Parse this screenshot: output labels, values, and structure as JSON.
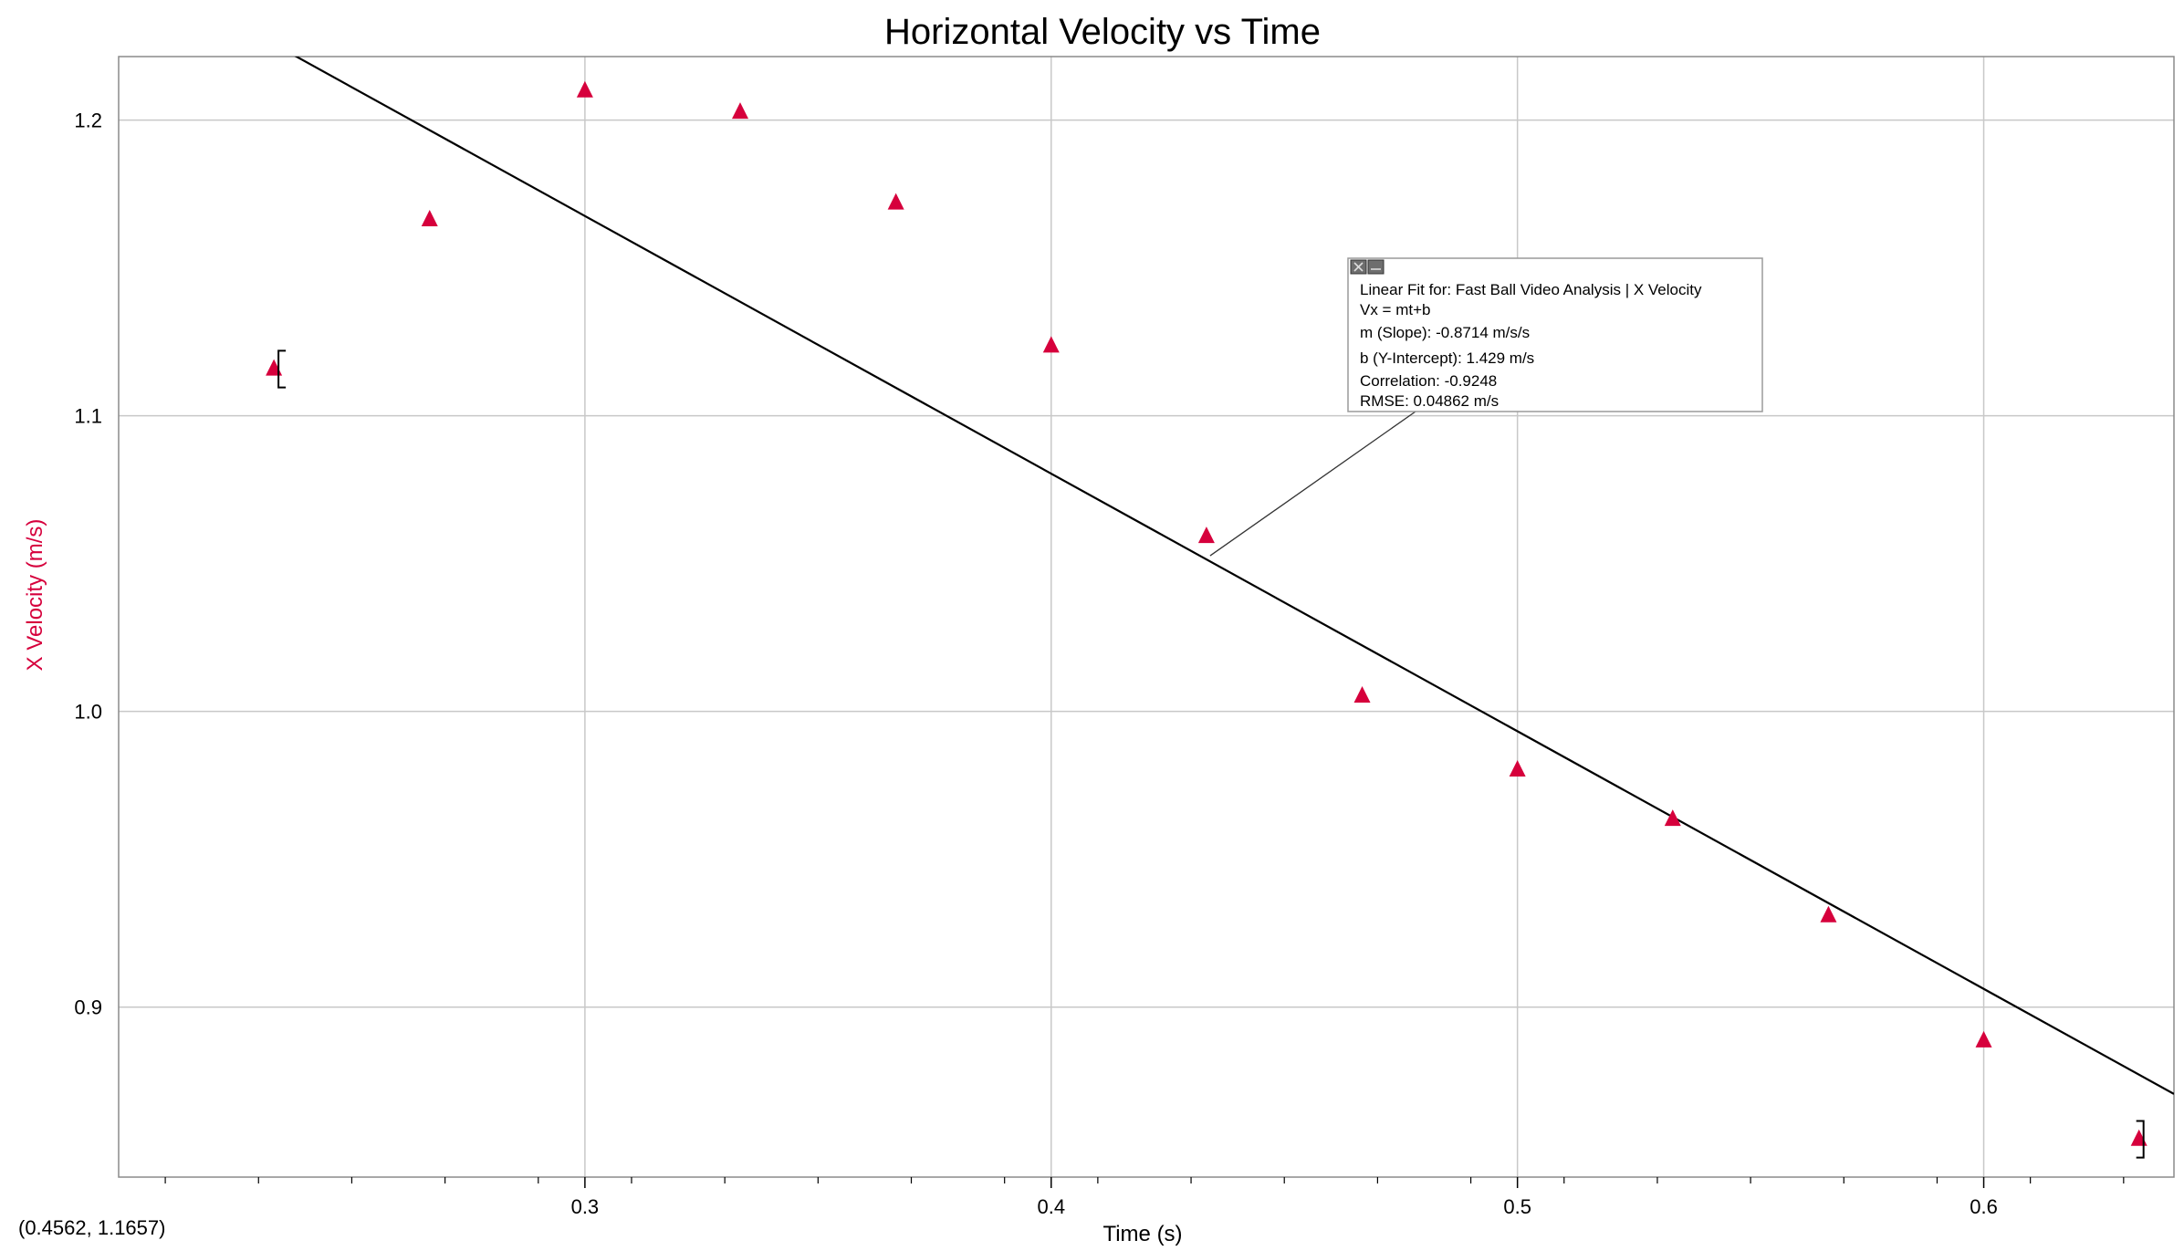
{
  "chart_data": {
    "type": "scatter",
    "title": "Horizontal Velocity vs Time",
    "xlabel": "Time (s)",
    "ylabel": "X Velocity (m/s)",
    "xlim": [
      0.2,
      0.6408
    ],
    "ylim": [
      0.8425,
      1.2215
    ],
    "x_ticks": [
      0.3,
      0.4,
      0.5,
      0.6
    ],
    "x_tick_labels": [
      "0.3",
      "0.4",
      "0.5",
      "0.6"
    ],
    "y_ticks": [
      0.9,
      1.0,
      1.1,
      1.2
    ],
    "y_tick_labels": [
      "0.9",
      "1.0",
      "1.1",
      "1.2"
    ],
    "grid": true,
    "series": [
      {
        "marker": "triangle",
        "color": "#d6003c",
        "x": [
          0.2333,
          0.2667,
          0.3,
          0.3333,
          0.3667,
          0.4,
          0.4333,
          0.4667,
          0.5,
          0.5333,
          0.5667,
          0.6,
          0.6333
        ],
        "y": [
          1.1158,
          1.1663,
          1.2099,
          1.2027,
          1.172,
          1.1236,
          1.0592,
          1.0052,
          0.9802,
          0.9635,
          0.9309,
          0.8886,
          0.8553
        ],
        "error_bars_on": [
          0.2333,
          0.6333
        ],
        "error_halfwidth": 0.0062
      }
    ],
    "fit": {
      "type": "linear",
      "slope": -0.8714,
      "intercept": 1.429,
      "box_lines": [
        "Linear Fit for: Fast Ball Video Analysis | X Velocity",
        "Vx = mt+b",
        "m (Slope): -0.8714 m/s/s",
        "b (Y-Intercept): 1.429 m/s",
        "Correlation: -0.9248",
        "RMSE: 0.04862 m/s"
      ],
      "anchor_x": 0.4333
    },
    "cursor_readout": "(0.4562, 1.1657)",
    "colors": {
      "data": "#d6003c",
      "ylabel": "#d6003c",
      "grid": "#c8c8c8"
    }
  }
}
